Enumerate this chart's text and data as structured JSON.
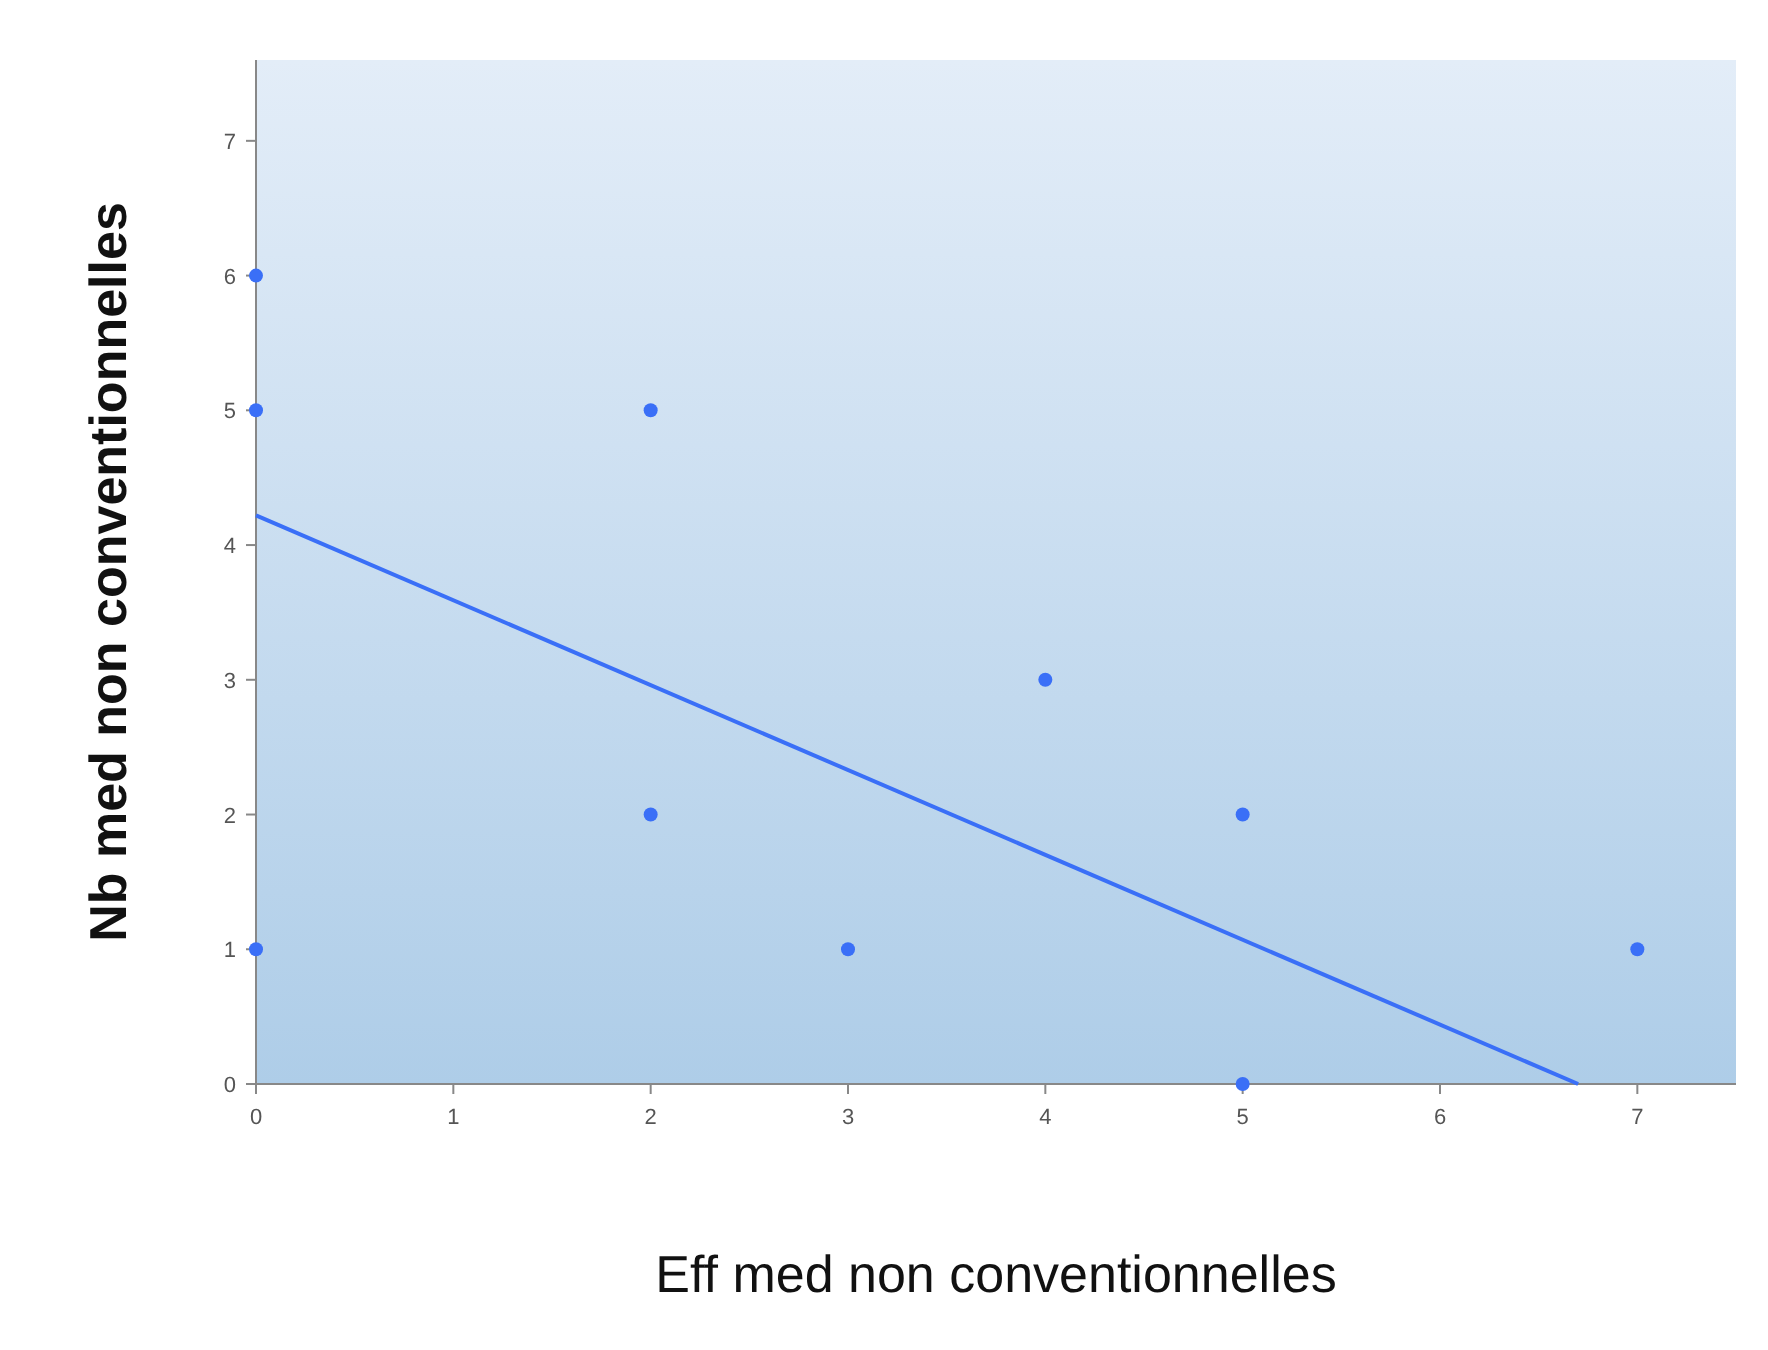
{
  "chart_data": {
    "type": "scatter",
    "xlabel": "Eff med non conventionnelles",
    "ylabel": "Nb med non conventionnelles",
    "xlim": [
      0,
      7.5
    ],
    "ylim": [
      0,
      7.6
    ],
    "xticks": [
      0,
      1,
      2,
      3,
      4,
      5,
      6,
      7
    ],
    "yticks": [
      0,
      1,
      2,
      3,
      4,
      5,
      6,
      7
    ],
    "grid": false,
    "marker": "circle",
    "series": [
      {
        "color": "#3a6ff7",
        "x": [
          0,
          0,
          0,
          2,
          2,
          3,
          4,
          5,
          5,
          7
        ],
        "values": [
          6,
          5,
          1,
          5,
          2,
          1,
          3,
          2,
          0,
          1
        ]
      },
      {
        "type": "line",
        "color": "#3a6ff7",
        "x": [
          0,
          6.7
        ],
        "values": [
          4.22,
          0
        ],
        "marker": "none"
      }
    ]
  }
}
